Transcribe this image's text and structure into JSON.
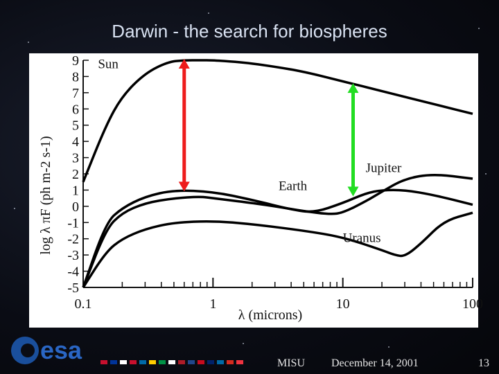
{
  "slide": {
    "title": "Darwin - the search for biospheres",
    "logo_text": "esa",
    "footer_org": "MISU",
    "footer_date": "December 14, 2001",
    "page_number": "13"
  },
  "colors": {
    "background": "#0a0c14",
    "title": "#d9e2f2",
    "sun_arrow": "#ee1c1c",
    "earth_arrow": "#22dd22",
    "logo": "#1a4f9c"
  },
  "chart_data": {
    "type": "line",
    "title": "",
    "xlabel": "λ (microns)",
    "ylabel": "log λ πF (ph m-2 s-1)",
    "x_scale": "log",
    "xlim": [
      0.1,
      100
    ],
    "ylim": [
      -5,
      9
    ],
    "x_ticks": [
      "0.1",
      "1",
      "10",
      "100"
    ],
    "y_ticks": [
      "9",
      "8",
      "7",
      "6",
      "5",
      "4",
      "3",
      "2",
      "1",
      "0",
      "-1",
      "-2",
      "-3",
      "-4",
      "-5"
    ],
    "grid": false,
    "legend": "none",
    "series": [
      {
        "name": "Sun",
        "x": [
          0.1,
          0.15,
          0.2,
          0.3,
          0.45,
          0.6,
          0.8,
          1,
          1.5,
          2,
          3,
          5,
          10,
          20,
          50,
          100
        ],
        "y": [
          1.5,
          5.0,
          6.8,
          8.2,
          8.9,
          9.0,
          9.0,
          9.0,
          8.9,
          8.8,
          8.6,
          8.3,
          7.7,
          7.1,
          6.3,
          5.7
        ]
      },
      {
        "name": "Earth",
        "x": [
          0.1,
          0.15,
          0.2,
          0.3,
          0.5,
          1,
          2,
          4,
          6,
          10,
          15,
          20,
          30,
          50,
          100
        ],
        "y": [
          -5.5,
          -1.0,
          -0.1,
          0.6,
          1.0,
          0.9,
          0.4,
          -0.2,
          -0.4,
          0.2,
          0.8,
          1.0,
          1.0,
          0.7,
          0.1
        ]
      },
      {
        "name": "Jupiter",
        "x": [
          0.1,
          0.15,
          0.2,
          0.3,
          0.5,
          0.8,
          1,
          2,
          3,
          5,
          8,
          10,
          15,
          20,
          30,
          50,
          100
        ],
        "y": [
          -5.5,
          -1.4,
          -0.4,
          0.2,
          0.5,
          0.6,
          0.5,
          0.2,
          0.0,
          -0.3,
          -0.5,
          -0.4,
          0.3,
          0.9,
          1.7,
          2.0,
          1.7
        ]
      },
      {
        "name": "Uranus",
        "x": [
          0.1,
          0.15,
          0.2,
          0.3,
          0.5,
          1,
          2,
          5,
          10,
          20,
          25,
          30,
          40,
          60,
          100
        ],
        "y": [
          -5.5,
          -2.8,
          -2.0,
          -1.4,
          -1.0,
          -0.9,
          -1.1,
          -1.5,
          -1.9,
          -2.7,
          -3.0,
          -3.1,
          -2.3,
          -0.9,
          -0.4
        ]
      }
    ],
    "annotations": [
      {
        "type": "double-arrow",
        "x": 0.6,
        "y_from": 9.0,
        "y_to": 1.0,
        "color": "#ee1c1c"
      },
      {
        "type": "double-arrow",
        "x": 12,
        "y_from": 7.5,
        "y_to": 0.7,
        "color": "#22dd22"
      }
    ]
  }
}
